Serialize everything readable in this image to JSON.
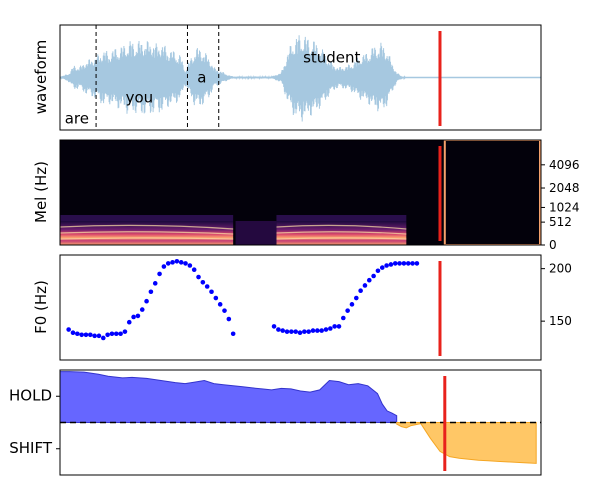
{
  "colors": {
    "waveform": "#a6c8e0",
    "cursor": "#e8221c",
    "f0_points": "#0000ff",
    "hold_fill": "#6666ff",
    "hold_line": "#3333cc",
    "shift_fill": "#ffc766",
    "shift_line": "#f5a623",
    "mel_bg": "#03010b"
  },
  "chart_data": [
    {
      "panel": "waveform",
      "type": "area",
      "ylabel": "waveform",
      "xlim": [
        0,
        1
      ],
      "ylim": [
        -1,
        1
      ],
      "cursor_x": 0.79,
      "word_boundaries": [
        0.075,
        0.265,
        0.33
      ],
      "words": [
        {
          "text": "are",
          "x": 0.035,
          "y": -0.78
        },
        {
          "text": "you",
          "x": 0.165,
          "y": -0.38
        },
        {
          "text": "a",
          "x": 0.295,
          "y": 0.0
        },
        {
          "text": "student",
          "x": 0.565,
          "y": 0.38
        }
      ],
      "envelope": [
        [
          0.0,
          0.0
        ],
        [
          0.01,
          0.05
        ],
        [
          0.02,
          0.1
        ],
        [
          0.03,
          0.25
        ],
        [
          0.04,
          0.2
        ],
        [
          0.05,
          0.3
        ],
        [
          0.06,
          0.35
        ],
        [
          0.07,
          0.4
        ],
        [
          0.08,
          0.45
        ],
        [
          0.09,
          0.55
        ],
        [
          0.1,
          0.5
        ],
        [
          0.11,
          0.55
        ],
        [
          0.12,
          0.6
        ],
        [
          0.13,
          0.62
        ],
        [
          0.14,
          0.7
        ],
        [
          0.15,
          0.72
        ],
        [
          0.16,
          0.68
        ],
        [
          0.17,
          0.75
        ],
        [
          0.18,
          0.7
        ],
        [
          0.19,
          0.73
        ],
        [
          0.2,
          0.65
        ],
        [
          0.21,
          0.7
        ],
        [
          0.22,
          0.6
        ],
        [
          0.23,
          0.55
        ],
        [
          0.24,
          0.5
        ],
        [
          0.25,
          0.45
        ],
        [
          0.26,
          0.15
        ],
        [
          0.27,
          0.35
        ],
        [
          0.28,
          0.55
        ],
        [
          0.29,
          0.6
        ],
        [
          0.3,
          0.5
        ],
        [
          0.31,
          0.4
        ],
        [
          0.32,
          0.2
        ],
        [
          0.33,
          0.15
        ],
        [
          0.34,
          0.1
        ],
        [
          0.35,
          0.05
        ],
        [
          0.36,
          0.02
        ],
        [
          0.44,
          0.02
        ],
        [
          0.46,
          0.1
        ],
        [
          0.47,
          0.4
        ],
        [
          0.48,
          0.65
        ],
        [
          0.49,
          0.8
        ],
        [
          0.5,
          0.85
        ],
        [
          0.51,
          0.82
        ],
        [
          0.52,
          0.75
        ],
        [
          0.53,
          0.72
        ],
        [
          0.54,
          0.6
        ],
        [
          0.55,
          0.5
        ],
        [
          0.56,
          0.35
        ],
        [
          0.57,
          0.25
        ],
        [
          0.58,
          0.2
        ],
        [
          0.59,
          0.22
        ],
        [
          0.6,
          0.25
        ],
        [
          0.61,
          0.3
        ],
        [
          0.62,
          0.4
        ],
        [
          0.63,
          0.45
        ],
        [
          0.64,
          0.5
        ],
        [
          0.65,
          0.6
        ],
        [
          0.66,
          0.65
        ],
        [
          0.67,
          0.68
        ],
        [
          0.68,
          0.55
        ],
        [
          0.69,
          0.3
        ],
        [
          0.7,
          0.1
        ],
        [
          0.71,
          0.03
        ],
        [
          0.72,
          0.0
        ],
        [
          1.0,
          0.0
        ]
      ]
    },
    {
      "panel": "mel",
      "type": "heatmap",
      "ylabel": "Mel (Hz)",
      "ytick_labels": [
        "0",
        "512",
        "1024",
        "2048",
        "4096"
      ],
      "ylim": [
        0,
        8000
      ],
      "cursor_x": 0.79,
      "voiced_segments": [
        [
          0.0,
          0.36
        ],
        [
          0.45,
          0.72
        ]
      ],
      "padding_start": 0.8
    },
    {
      "panel": "f0",
      "type": "scatter",
      "ylabel": "F0 (Hz)",
      "ytick_labels": [
        "150",
        "200"
      ],
      "ylim": [
        113,
        213
      ],
      "cursor_x": 0.79,
      "x": [
        0.018,
        0.027,
        0.036,
        0.045,
        0.054,
        0.063,
        0.072,
        0.081,
        0.09,
        0.099,
        0.108,
        0.117,
        0.126,
        0.135,
        0.144,
        0.153,
        0.162,
        0.171,
        0.18,
        0.189,
        0.198,
        0.207,
        0.216,
        0.225,
        0.234,
        0.243,
        0.252,
        0.261,
        0.27,
        0.279,
        0.288,
        0.297,
        0.306,
        0.315,
        0.324,
        0.333,
        0.342,
        0.351,
        0.36,
        0.445,
        0.454,
        0.463,
        0.472,
        0.481,
        0.49,
        0.499,
        0.508,
        0.517,
        0.526,
        0.535,
        0.544,
        0.553,
        0.562,
        0.571,
        0.58,
        0.589,
        0.598,
        0.607,
        0.616,
        0.625,
        0.634,
        0.643,
        0.652,
        0.661,
        0.67,
        0.679,
        0.688,
        0.697,
        0.706,
        0.715,
        0.724,
        0.733,
        0.742
      ],
      "y": [
        142,
        139,
        138,
        137,
        137,
        137,
        136,
        136,
        134,
        137,
        138,
        138,
        138,
        140,
        149,
        154,
        155,
        161,
        169,
        178,
        186,
        195,
        202,
        205,
        206,
        207,
        206,
        205,
        203,
        199,
        192,
        187,
        183,
        178,
        172,
        166,
        160,
        152,
        138,
        145,
        142,
        141,
        140,
        140,
        140,
        139,
        140,
        140,
        141,
        141,
        141,
        142,
        143,
        145,
        145,
        153,
        160,
        166,
        172,
        179,
        184,
        189,
        193,
        198,
        201,
        203,
        204,
        205,
        205,
        205,
        205,
        205,
        205
      ]
    },
    {
      "panel": "turn",
      "type": "area",
      "ytick_labels": [
        "HOLD",
        "SHIFT"
      ],
      "ylim": [
        -1.0,
        1.0
      ],
      "cursor_x": 0.8,
      "hold": {
        "x": [
          0.0,
          0.02,
          0.05,
          0.08,
          0.1,
          0.13,
          0.15,
          0.18,
          0.21,
          0.24,
          0.26,
          0.28,
          0.3,
          0.32,
          0.34,
          0.36,
          0.38,
          0.4,
          0.42,
          0.44,
          0.46,
          0.48,
          0.5,
          0.52,
          0.54,
          0.56,
          0.58,
          0.6,
          0.62,
          0.64,
          0.66,
          0.67,
          0.68,
          0.69,
          0.7
        ],
        "y": [
          0.97,
          0.97,
          0.96,
          0.92,
          0.88,
          0.85,
          0.86,
          0.84,
          0.8,
          0.76,
          0.74,
          0.77,
          0.8,
          0.74,
          0.72,
          0.7,
          0.68,
          0.66,
          0.64,
          0.62,
          0.65,
          0.64,
          0.6,
          0.58,
          0.62,
          0.8,
          0.78,
          0.72,
          0.74,
          0.7,
          0.55,
          0.35,
          0.22,
          0.18,
          0.13
        ]
      },
      "shift": {
        "x": [
          0.7,
          0.71,
          0.72,
          0.73,
          0.75,
          0.77,
          0.79,
          0.81,
          0.83,
          0.85,
          0.87,
          0.89,
          0.91,
          0.93,
          0.95,
          0.97,
          0.99
        ],
        "y": [
          -0.03,
          -0.08,
          -0.1,
          -0.06,
          -0.02,
          -0.3,
          -0.55,
          -0.65,
          -0.68,
          -0.7,
          -0.72,
          -0.73,
          -0.74,
          -0.75,
          -0.76,
          -0.77,
          -0.78
        ]
      }
    }
  ]
}
